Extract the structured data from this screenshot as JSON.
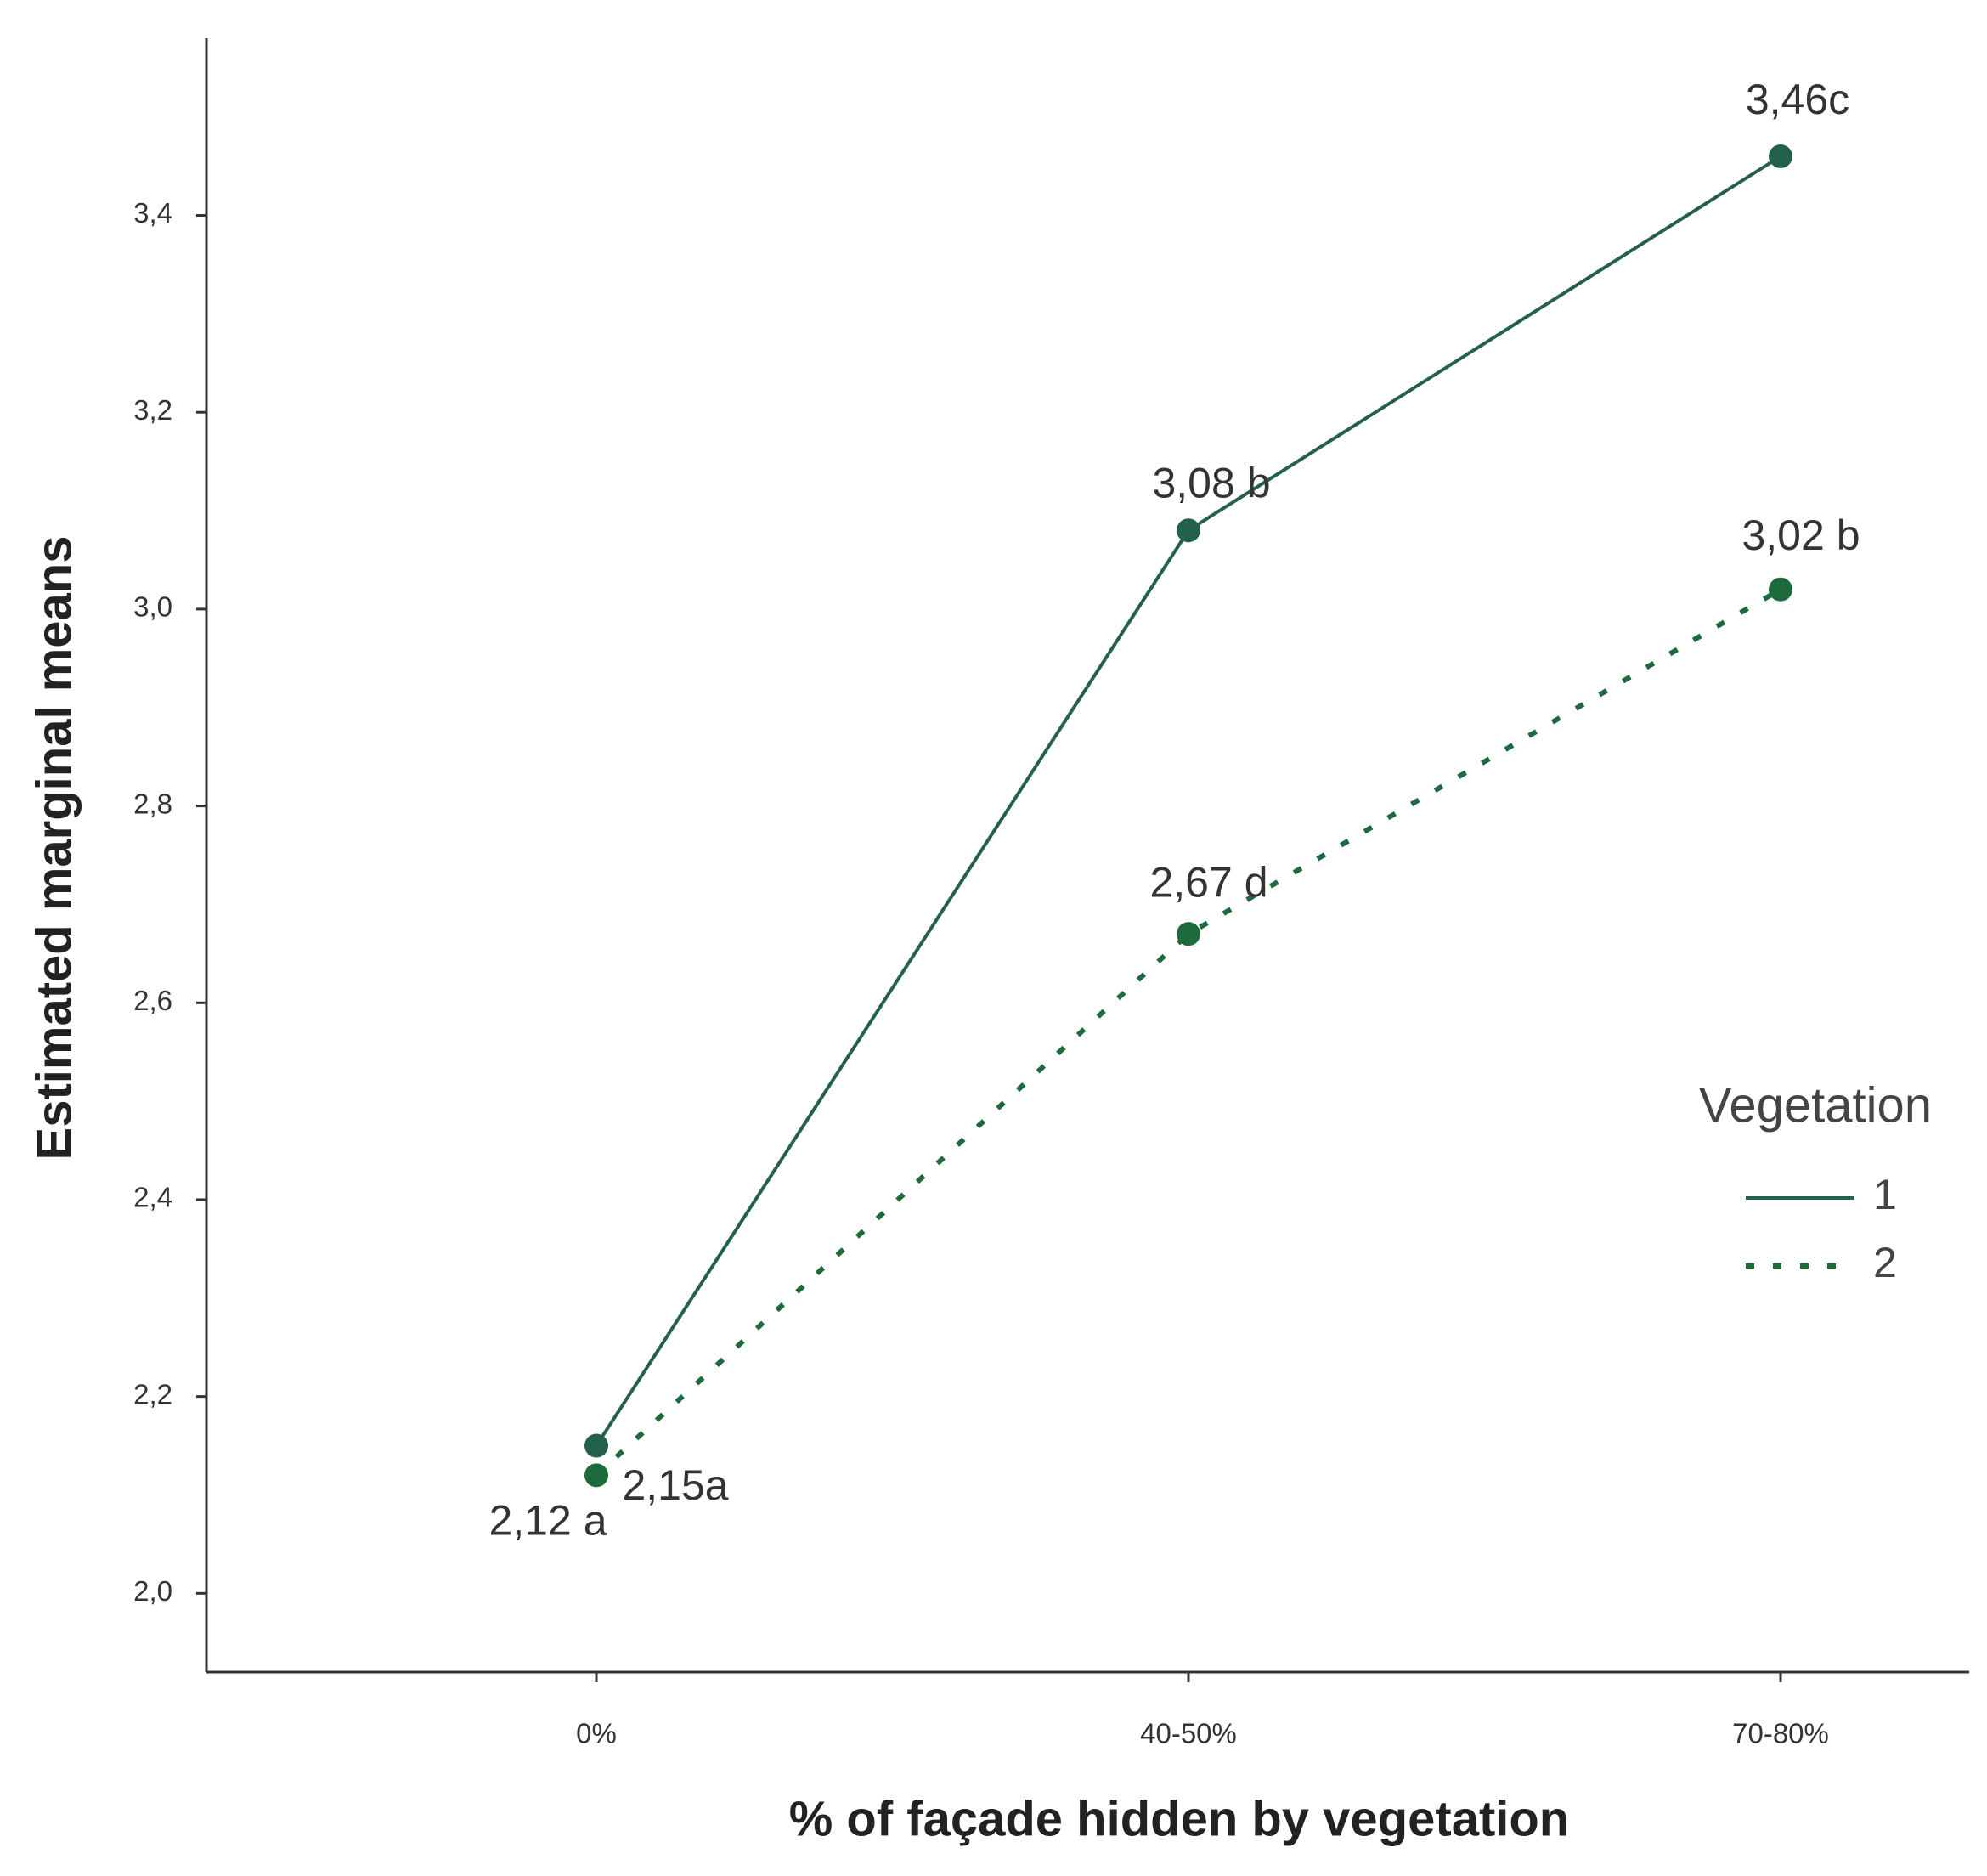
{
  "chart_data": {
    "type": "line",
    "x_label": "% of façade hidden by vegetation",
    "y_label": "Estimated marginal means",
    "categories": [
      "0%",
      "40-50%",
      "70-80%"
    ],
    "series": [
      {
        "name": "1",
        "color": "#24614c",
        "dash": false,
        "values": [
          2.15,
          3.08,
          3.46
        ],
        "value_labels": [
          "2,15a",
          "3,08 b",
          "3,46c"
        ]
      },
      {
        "name": "2",
        "color": "#1d6b3c",
        "dash": true,
        "values": [
          2.12,
          2.67,
          3.02
        ],
        "value_labels": [
          "2,12 a",
          "2,67 d",
          "3,02 b"
        ]
      }
    ],
    "ylim": [
      1.92,
      3.58
    ],
    "yticks": [
      {
        "value": 2.0,
        "label": "2,0"
      },
      {
        "value": 2.2,
        "label": "2,2"
      },
      {
        "value": 2.4,
        "label": "2,4"
      },
      {
        "value": 2.6,
        "label": "2,6"
      },
      {
        "value": 2.8,
        "label": "2,8"
      },
      {
        "value": 3.0,
        "label": "3,0"
      },
      {
        "value": 3.2,
        "label": "3,2"
      },
      {
        "value": 3.4,
        "label": "3,4"
      }
    ],
    "grid": false,
    "legend": {
      "title": "Vegetation",
      "position": "right"
    }
  }
}
